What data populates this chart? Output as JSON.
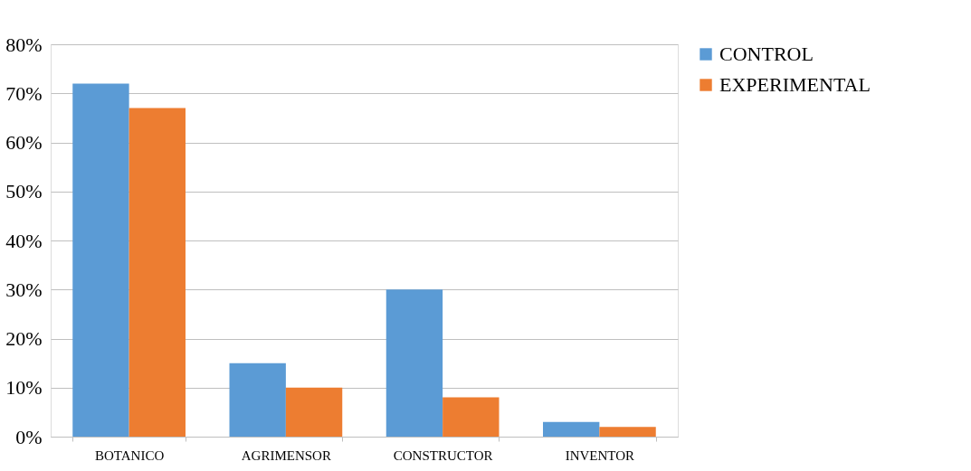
{
  "chart_data": {
    "type": "bar",
    "categories": [
      "BOTANICO",
      "AGRIMENSOR",
      "CONSTRUCTOR",
      "INVENTOR"
    ],
    "series": [
      {
        "name": "CONTROL",
        "color": "#5b9bd5",
        "values": [
          72,
          15,
          30,
          3
        ]
      },
      {
        "name": "EXPERIMENTAL",
        "color": "#ed7d31",
        "values": [
          67,
          10,
          8,
          2
        ]
      }
    ],
    "ylim": [
      0,
      80
    ],
    "yticks": [
      {
        "value": 0,
        "label": "0%"
      },
      {
        "value": 10,
        "label": "10%"
      },
      {
        "value": 20,
        "label": "20%"
      },
      {
        "value": 30,
        "label": "30%"
      },
      {
        "value": 40,
        "label": "40%"
      },
      {
        "value": 50,
        "label": "50%"
      },
      {
        "value": 60,
        "label": "60%"
      },
      {
        "value": 70,
        "label": "70%"
      },
      {
        "value": 80,
        "label": "80%"
      }
    ],
    "grid": "y",
    "legend": "right"
  }
}
